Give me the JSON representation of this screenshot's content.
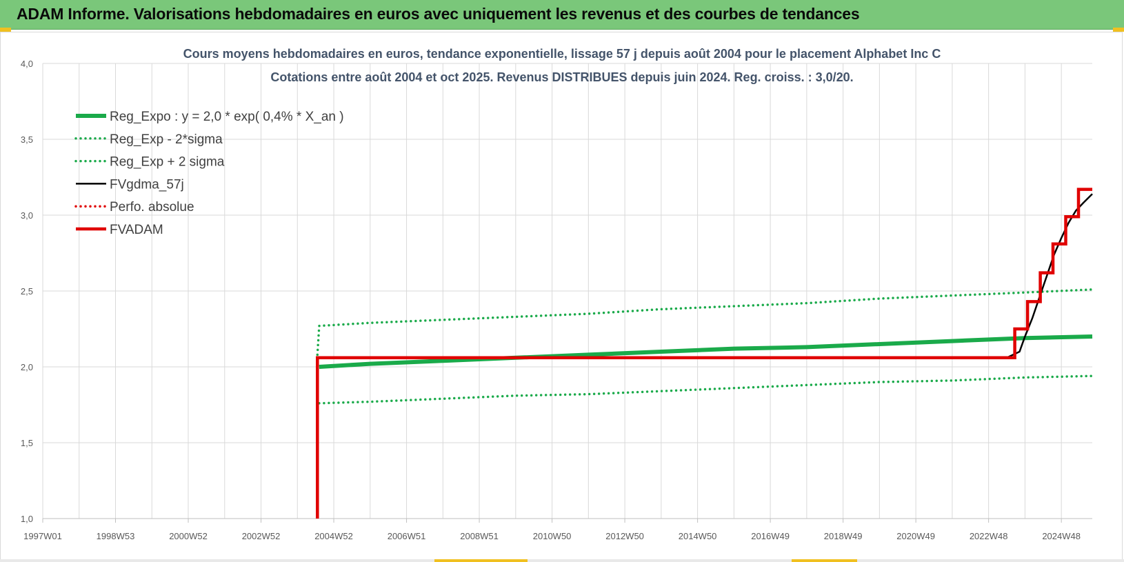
{
  "header": {
    "title": "ADAM Informe. Valorisations hebdomadaires en euros avec uniquement les revenus et des courbes de tendances"
  },
  "chart_data": {
    "type": "line",
    "title": "Cours moyens hebdomadaires en euros, tendance exponentielle, lissage 57 j depuis août 2004 pour le placement Alphabet Inc C",
    "subtitle": "Cotations entre août 2004 et oct 2025. Revenus DISTRIBUES depuis juin 2024. Reg. croiss. : 3,0/20.",
    "xlabel": "",
    "ylabel": "",
    "x_ticks": [
      "1997W01",
      "1998W53",
      "2000W52",
      "2002W52",
      "2004W52",
      "2006W51",
      "2008W51",
      "2010W50",
      "2012W50",
      "2014W50",
      "2016W49",
      "2018W49",
      "2020W49",
      "2022W48",
      "2024W48"
    ],
    "x_tick_years": [
      1997.0,
      1999.0,
      2001.0,
      2003.0,
      2005.0,
      2007.0,
      2009.0,
      2011.0,
      2013.0,
      2015.0,
      2017.0,
      2019.0,
      2021.0,
      2023.0,
      2025.0
    ],
    "xlim": [
      1997.0,
      2025.85
    ],
    "y_ticks": [
      "1,0",
      "1,5",
      "2,0",
      "2,5",
      "3,0",
      "3,5",
      "4,0"
    ],
    "ylim": [
      1.0,
      4.0
    ],
    "grid": true,
    "legend_position": "top-left",
    "series": [
      {
        "name": "Reg_Expo : y = 2,0 * exp( 0,4% *  X_an )",
        "color": "#1aaa4a",
        "style": "solid-thick",
        "x": [
          2004.6,
          2006,
          2008,
          2010,
          2012,
          2014,
          2016,
          2018,
          2020,
          2022,
          2024,
          2025.85
        ],
        "y": [
          2.0,
          2.02,
          2.04,
          2.06,
          2.08,
          2.1,
          2.12,
          2.13,
          2.15,
          2.17,
          2.19,
          2.2
        ]
      },
      {
        "name": "Reg_Exp - 2*sigma",
        "color": "#1aaa4a",
        "style": "dotted",
        "x": [
          2004.6,
          2006,
          2008,
          2010,
          2012,
          2014,
          2016,
          2018,
          2020,
          2022,
          2024,
          2025.85
        ],
        "y": [
          1.76,
          1.77,
          1.79,
          1.81,
          1.82,
          1.84,
          1.86,
          1.88,
          1.9,
          1.91,
          1.93,
          1.94
        ]
      },
      {
        "name": "Reg_Exp + 2 sigma",
        "color": "#1aaa4a",
        "style": "dotted",
        "x": [
          2004.55,
          2004.6,
          2006,
          2008,
          2010,
          2012,
          2014,
          2016,
          2018,
          2020,
          2022,
          2024,
          2025.85
        ],
        "y": [
          2.08,
          2.27,
          2.29,
          2.31,
          2.33,
          2.35,
          2.38,
          2.4,
          2.42,
          2.45,
          2.47,
          2.49,
          2.51
        ]
      },
      {
        "name": "FVgdma_57j",
        "color": "#000000",
        "style": "solid",
        "x": [
          2004.6,
          2023.5,
          2023.85,
          2024.0,
          2024.2,
          2024.4,
          2024.6,
          2024.8,
          2025.0,
          2025.2,
          2025.4,
          2025.6,
          2025.85
        ],
        "y": [
          2.06,
          2.06,
          2.1,
          2.2,
          2.32,
          2.46,
          2.6,
          2.74,
          2.85,
          2.95,
          3.03,
          3.08,
          3.14
        ]
      },
      {
        "name": "Perfo. absolue",
        "color": "#e00000",
        "style": "dotted",
        "x": [],
        "y": []
      },
      {
        "name": "FVADAM",
        "color": "#e00000",
        "style": "step-thick",
        "x": [
          2004.55,
          2004.55,
          2023.72,
          2023.72,
          2024.07,
          2024.07,
          2024.42,
          2024.42,
          2024.77,
          2024.77,
          2025.12,
          2025.12,
          2025.47,
          2025.47,
          2025.85
        ],
        "y": [
          1.0,
          2.06,
          2.06,
          2.25,
          2.25,
          2.43,
          2.43,
          2.62,
          2.62,
          2.81,
          2.81,
          2.99,
          2.99,
          3.17,
          3.17
        ]
      }
    ]
  }
}
